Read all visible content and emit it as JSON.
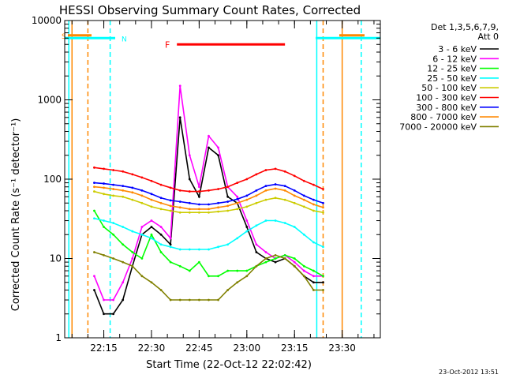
{
  "chart_data": {
    "type": "line",
    "title": "HESSI Observing Summary Count Rates, Corrected",
    "xlabel": "Start Time (22-Oct-12 22:02:42)",
    "ylabel": "Corrected Count Rate (s⁻¹ detector⁻¹)",
    "ylog": true,
    "ylim": [
      1,
      10000
    ],
    "xlim": [
      "22:02:42",
      "23:42:00"
    ],
    "x_ticks": [
      "22:15",
      "22:30",
      "22:45",
      "23:00",
      "23:15",
      "23:30"
    ],
    "y_ticks": [
      "1",
      "10",
      "100",
      "1000",
      "10000"
    ],
    "grid": false,
    "legend_position": "right",
    "legend_header": [
      "Det 1,3,5,6,7,9,",
      "Att 0"
    ],
    "footer_date": "23-Oct-2012 13:51",
    "x": [
      "22:12",
      "22:15",
      "22:18",
      "22:21",
      "22:24",
      "22:27",
      "22:30",
      "22:33",
      "22:36",
      "22:39",
      "22:42",
      "22:45",
      "22:48",
      "22:51",
      "22:54",
      "22:57",
      "23:00",
      "23:03",
      "23:06",
      "23:09",
      "23:12",
      "23:15",
      "23:18",
      "23:21",
      "23:24"
    ],
    "series": [
      {
        "name": "3 - 6 keV",
        "color": "#000000",
        "values": [
          4,
          2,
          2,
          3,
          8,
          20,
          25,
          20,
          15,
          600,
          100,
          60,
          250,
          200,
          60,
          50,
          25,
          12,
          10,
          9,
          10,
          8,
          6,
          5,
          5
        ]
      },
      {
        "name": "6 - 12 keV",
        "color": "#ff00ff",
        "values": [
          6,
          3,
          3,
          5,
          10,
          25,
          30,
          25,
          18,
          1500,
          200,
          80,
          350,
          250,
          80,
          60,
          30,
          15,
          12,
          10,
          11,
          9,
          7,
          6,
          6
        ]
      },
      {
        "name": "12 - 25 keV",
        "color": "#00ff00",
        "values": [
          40,
          25,
          20,
          15,
          12,
          10,
          20,
          12,
          9,
          8,
          7,
          9,
          6,
          6,
          7,
          7,
          7,
          8,
          9,
          10,
          11,
          10,
          8,
          7,
          6
        ]
      },
      {
        "name": "25 - 50 keV",
        "color": "#00ffff",
        "values": [
          32,
          30,
          28,
          25,
          22,
          20,
          18,
          15,
          14,
          13,
          13,
          13,
          13,
          14,
          15,
          18,
          22,
          26,
          30,
          30,
          28,
          25,
          20,
          16,
          14
        ]
      },
      {
        "name": "50 - 100 keV",
        "color": "#cccc00",
        "values": [
          70,
          65,
          62,
          60,
          55,
          50,
          45,
          42,
          40,
          38,
          38,
          38,
          38,
          39,
          40,
          42,
          45,
          50,
          55,
          58,
          55,
          50,
          45,
          40,
          38
        ]
      },
      {
        "name": "100 - 300 keV",
        "color": "#ff0000",
        "values": [
          140,
          135,
          130,
          125,
          115,
          105,
          95,
          85,
          78,
          72,
          70,
          70,
          72,
          75,
          80,
          90,
          100,
          115,
          130,
          135,
          125,
          110,
          95,
          85,
          75
        ]
      },
      {
        "name": "300 - 800 keV",
        "color": "#0000ff",
        "values": [
          90,
          88,
          85,
          82,
          78,
          72,
          65,
          58,
          54,
          52,
          50,
          48,
          48,
          50,
          52,
          56,
          62,
          72,
          82,
          86,
          82,
          72,
          62,
          55,
          50
        ]
      },
      {
        "name": "800 - 7000 keV",
        "color": "#ff8800",
        "values": [
          80,
          78,
          75,
          72,
          68,
          62,
          55,
          50,
          46,
          44,
          42,
          42,
          42,
          44,
          46,
          50,
          55,
          62,
          72,
          76,
          72,
          62,
          55,
          48,
          44
        ]
      },
      {
        "name": "7000 - 20000 keV",
        "color": "#808000",
        "values": [
          12,
          11,
          10,
          9,
          8,
          6,
          5,
          4,
          3,
          3,
          3,
          3,
          3,
          3,
          4,
          5,
          6,
          8,
          10,
          11,
          10,
          8,
          6,
          4,
          4
        ]
      }
    ],
    "annotations": [
      {
        "label": "S",
        "color": "#ff8800",
        "level": 6500
      },
      {
        "label": "N",
        "color": "#00ffff",
        "level": 6000
      },
      {
        "label": "F",
        "color": "#ff0000",
        "level": 5000,
        "x_start": "22:38",
        "x_end": "23:12"
      }
    ],
    "vertical_markers": [
      {
        "x": "22:04",
        "color": "#00ffff",
        "style": "solid"
      },
      {
        "x": "22:05",
        "color": "#ff8800",
        "style": "solid"
      },
      {
        "x": "22:10",
        "color": "#ff8800",
        "style": "dashed"
      },
      {
        "x": "22:17",
        "color": "#00ffff",
        "style": "dashed"
      },
      {
        "x": "23:22",
        "color": "#00ffff",
        "style": "solid"
      },
      {
        "x": "23:24",
        "color": "#ff8800",
        "style": "dashed"
      },
      {
        "x": "23:30",
        "color": "#ff8800",
        "style": "solid"
      },
      {
        "x": "23:36",
        "color": "#00ffff",
        "style": "dashed"
      }
    ]
  }
}
